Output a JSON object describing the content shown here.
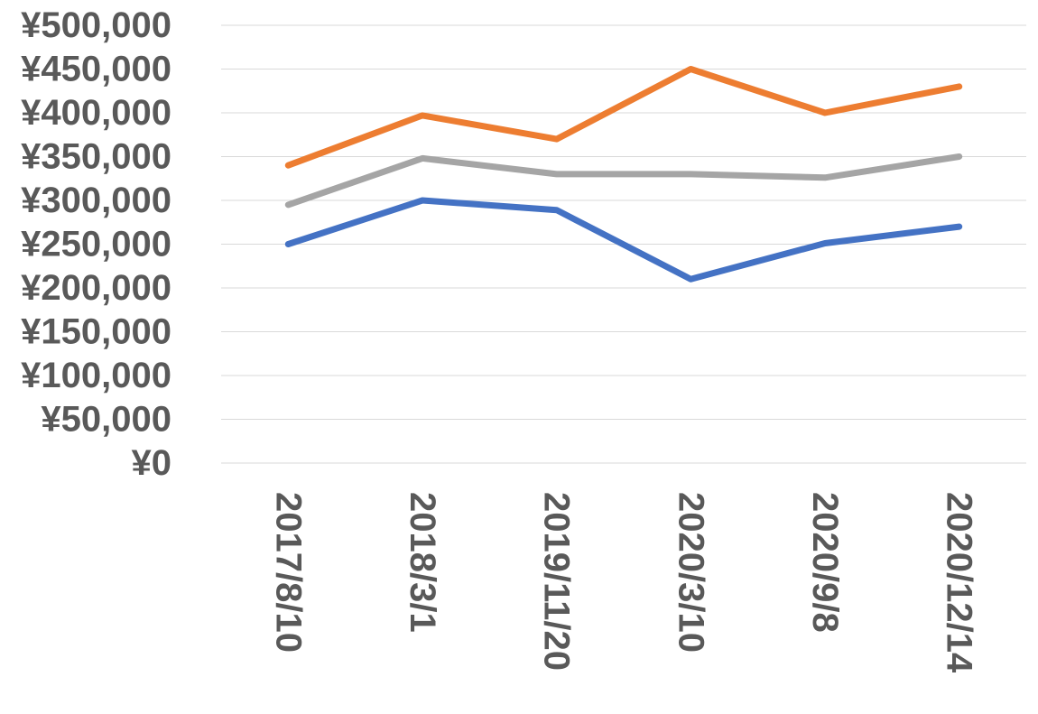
{
  "chart_data": {
    "type": "line",
    "title": "",
    "xlabel": "",
    "ylabel": "",
    "categories": [
      "2017/8/10",
      "2018/3/1",
      "2019/11/20",
      "2020/3/10",
      "2020/9/8",
      "2020/12/14"
    ],
    "ylim": [
      0,
      500000
    ],
    "yticks": [
      0,
      50000,
      100000,
      150000,
      200000,
      250000,
      300000,
      350000,
      400000,
      450000,
      500000
    ],
    "ytick_labels": [
      "¥0",
      "¥50,000",
      "¥100,000",
      "¥150,000",
      "¥200,000",
      "¥250,000",
      "¥300,000",
      "¥350,000",
      "¥400,000",
      "¥450,000",
      "¥500,000"
    ],
    "grid": true,
    "legend": "none",
    "series": [
      {
        "name": "orange",
        "color": "#ED7D31",
        "values": [
          340000,
          397000,
          370000,
          450000,
          400000,
          430000
        ]
      },
      {
        "name": "gray",
        "color": "#A5A5A5",
        "values": [
          295000,
          348000,
          330000,
          330000,
          326000,
          350000
        ]
      },
      {
        "name": "blue",
        "color": "#4472C4",
        "values": [
          250000,
          300000,
          289000,
          210000,
          251000,
          270000
        ]
      }
    ]
  }
}
